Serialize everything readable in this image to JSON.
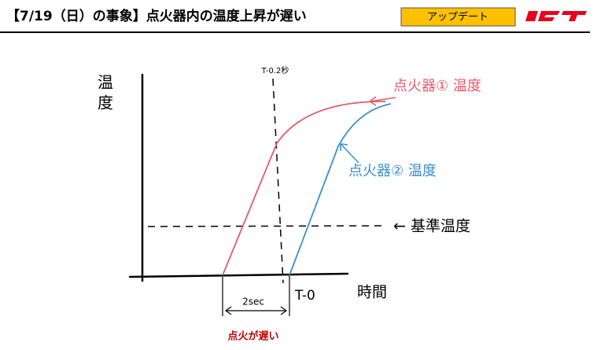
{
  "header": {
    "title": "【7/19（日）の事象】点火器内の温度上昇が遅い",
    "badge": "アップデート"
  },
  "diagram": {
    "y_axis_label_top": "温",
    "y_axis_label_bottom": "度",
    "x_axis_label": "時間",
    "marker_label": "T-0.2秒",
    "t0_label": "T-0",
    "interval_label": "2sec",
    "igniter1_label": "点火器① 温度",
    "igniter2_label": "点火器② 温度",
    "reference_label": "← 基準温度",
    "caption": "点火が遅い"
  }
}
